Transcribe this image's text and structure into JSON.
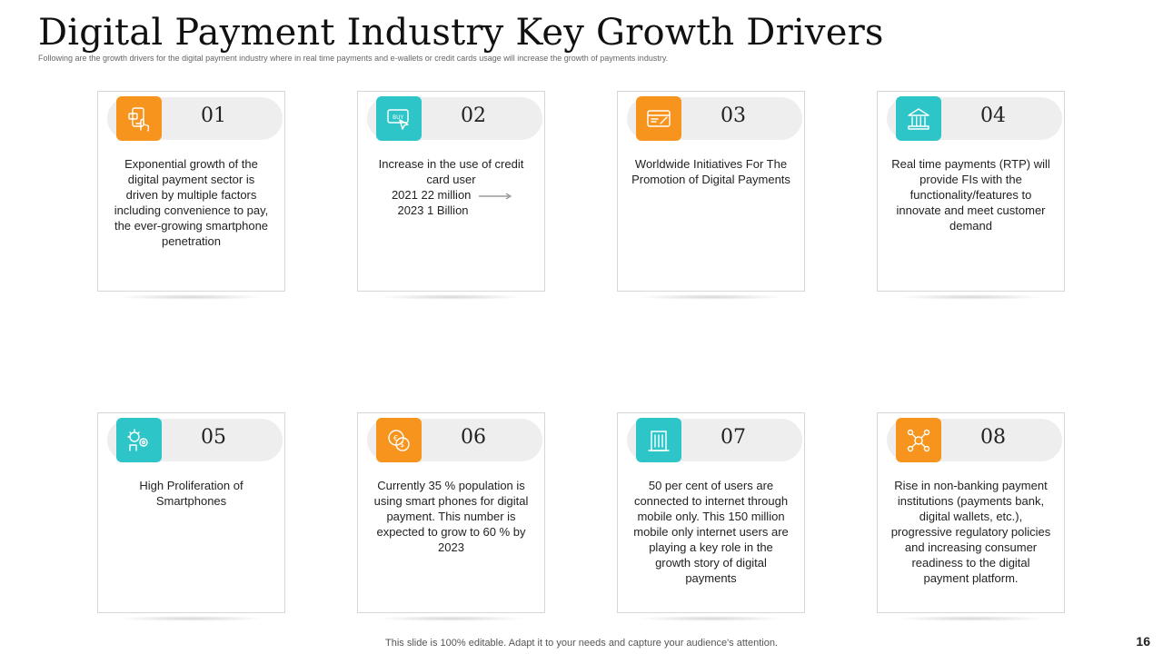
{
  "title": "Digital Payment Industry Key Growth Drivers",
  "subtitle": "Following are the growth drivers for the digital payment industry where in real time payments and e-wallets or credit cards usage will increase the growth of payments industry.",
  "colors": {
    "orange": "#f7941e",
    "teal": "#2ec5c8"
  },
  "cards": [
    {
      "number": "01",
      "icon": "mobile-touch-icon",
      "icon_color": "orange",
      "text": "Exponential growth of the digital payment sector is driven by multiple factors including convenience to pay, the ever-growing smartphone penetration"
    },
    {
      "number": "02",
      "icon": "buy-click-icon",
      "icon_color": "teal",
      "text_line1": "Increase in the use of credit card user",
      "text_line2": "2021  22 million",
      "text_line3": "2023 1 Billion"
    },
    {
      "number": "03",
      "icon": "card-icon",
      "icon_color": "orange",
      "text": "Worldwide Initiatives For The Promotion of Digital Payments"
    },
    {
      "number": "04",
      "icon": "bank-icon",
      "icon_color": "teal",
      "text": "Real time payments (RTP) will provide FIs with the functionality/features to innovate and meet customer demand"
    },
    {
      "number": "05",
      "icon": "innovation-gear-icon",
      "icon_color": "teal",
      "text": "High Proliferation of Smartphones"
    },
    {
      "number": "06",
      "icon": "coins-icon",
      "icon_color": "orange",
      "text": "Currently 35 % population is using smart phones for digital payment. This number is expected to grow to 60 % by 2023"
    },
    {
      "number": "07",
      "icon": "building-icon",
      "icon_color": "teal",
      "text": "50 per cent of users are connected to internet through mobile only. This 150 million mobile only internet users are playing a key role in the growth story of digital payments"
    },
    {
      "number": "08",
      "icon": "network-icon",
      "icon_color": "orange",
      "text": "Rise in non-banking payment institutions (payments bank, digital wallets, etc.), progressive regulatory policies and increasing consumer readiness to the digital payment platform."
    }
  ],
  "footer": "This slide is 100% editable. Adapt it to your needs and capture your audience's attention.",
  "page_number": "16"
}
